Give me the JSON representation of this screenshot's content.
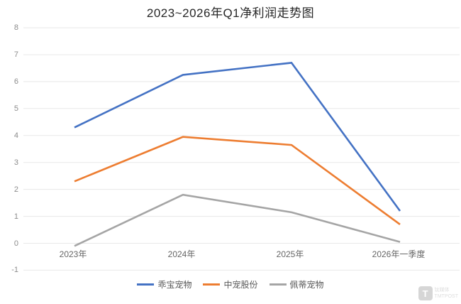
{
  "title": "2023~2026年Q1净利润走势图",
  "chart_data": {
    "type": "line",
    "title": "2023~2026年Q1净利润走势图",
    "categories": [
      "2023年",
      "2024年",
      "2025年",
      "2026年一季度"
    ],
    "series": [
      {
        "name": "乖宝宠物",
        "color": "#4472C4",
        "values": [
          4.3,
          6.25,
          6.7,
          1.2
        ]
      },
      {
        "name": "中宠股份",
        "color": "#ED7D31",
        "values": [
          2.3,
          3.95,
          3.65,
          0.7
        ]
      },
      {
        "name": "佩蒂宠物",
        "color": "#A5A5A5",
        "values": [
          -0.1,
          1.8,
          1.15,
          0.05
        ]
      }
    ],
    "xlabel": "",
    "ylabel": "",
    "ylim": [
      -1,
      8
    ],
    "ytick_interval": 1,
    "grid": "horizontal",
    "legend_position": "bottom"
  },
  "watermark": {
    "logo_letter": "T",
    "line1": "钛媒体",
    "line2": "TMTPOST"
  }
}
